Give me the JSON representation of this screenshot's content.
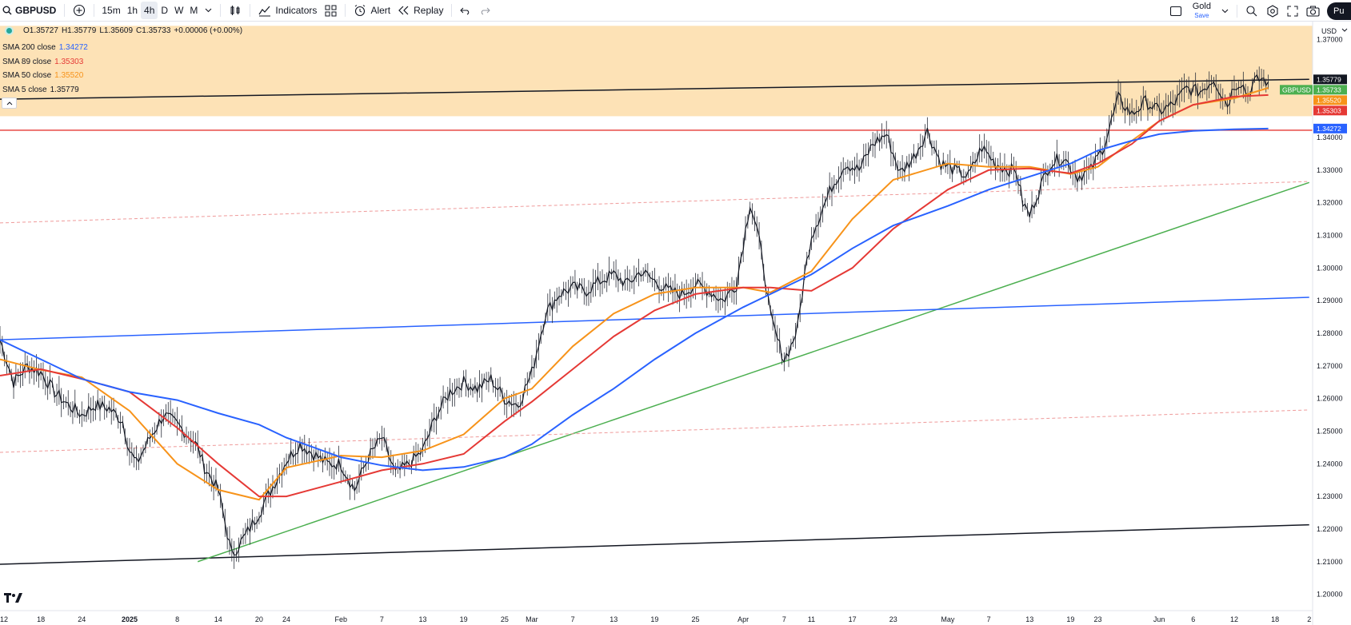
{
  "toolbar": {
    "symbol": "GBPUSD",
    "intervals": [
      "15m",
      "1h",
      "4h",
      "D",
      "W",
      "M"
    ],
    "active_interval": "4h",
    "indicators_label": "Indicators",
    "alert_label": "Alert",
    "replay_label": "Replay",
    "watch_name": "Gold",
    "watch_sub": "Save",
    "publish_label": "Pu"
  },
  "ohlc": {
    "open": "O1.35727",
    "high": "H1.35779",
    "low": "L1.35609",
    "close": "C1.35733",
    "change": "+0.00006 (+0.00%)"
  },
  "currency": "USD",
  "legend": [
    {
      "label": "SMA 200 close",
      "value": "1.34272",
      "color": "#2962ff"
    },
    {
      "label": "SMA 89 close",
      "value": "1.35303",
      "color": "#e53935"
    },
    {
      "label": "SMA 50 close",
      "value": "1.35520",
      "color": "#f7931a"
    },
    {
      "label": "SMA 5 close",
      "value": "1.35779",
      "color": "#131722"
    }
  ],
  "chart_data": {
    "type": "line",
    "symbol": "GBPUSD",
    "timeframe": "4h",
    "ylim": [
      1.195,
      1.3755
    ],
    "y_ticks": [
      1.2,
      1.21,
      1.22,
      1.23,
      1.24,
      1.25,
      1.26,
      1.27,
      1.28,
      1.29,
      1.3,
      1.31,
      1.32,
      1.33,
      1.34,
      1.37
    ],
    "y_tick_labels": [
      "1.20000",
      "1.21000",
      "1.22000",
      "1.23000",
      "1.24000",
      "1.25000",
      "1.26000",
      "1.27000",
      "1.28000",
      "1.29000",
      "1.30000",
      "1.31000",
      "1.32000",
      "1.33000",
      "1.34000",
      "1.37000"
    ],
    "x_ticks": [
      {
        "label": "12",
        "x": 0
      },
      {
        "label": "18",
        "x": 6
      },
      {
        "label": "24",
        "x": 12
      },
      {
        "label": "2025",
        "x": 19,
        "bold": true
      },
      {
        "label": "8",
        "x": 26
      },
      {
        "label": "14",
        "x": 32
      },
      {
        "label": "20",
        "x": 38
      },
      {
        "label": "24",
        "x": 42
      },
      {
        "label": "Feb",
        "x": 50
      },
      {
        "label": "7",
        "x": 56
      },
      {
        "label": "13",
        "x": 62
      },
      {
        "label": "19",
        "x": 68
      },
      {
        "label": "25",
        "x": 74
      },
      {
        "label": "Mar",
        "x": 78
      },
      {
        "label": "7",
        "x": 84
      },
      {
        "label": "13",
        "x": 90
      },
      {
        "label": "19",
        "x": 96
      },
      {
        "label": "25",
        "x": 102
      },
      {
        "label": "Apr",
        "x": 109
      },
      {
        "label": "7",
        "x": 115
      },
      {
        "label": "11",
        "x": 119
      },
      {
        "label": "17",
        "x": 125
      },
      {
        "label": "23",
        "x": 131
      },
      {
        "label": "May",
        "x": 139
      },
      {
        "label": "7",
        "x": 145
      },
      {
        "label": "13",
        "x": 151
      },
      {
        "label": "19",
        "x": 157
      },
      {
        "label": "23",
        "x": 161
      },
      {
        "label": "Jun",
        "x": 170
      },
      {
        "label": "6",
        "x": 175
      },
      {
        "label": "12",
        "x": 181
      },
      {
        "label": "18",
        "x": 187
      },
      {
        "label": "2",
        "x": 192
      }
    ],
    "xlim": [
      0,
      192.5
    ],
    "price_series": {
      "name": "GBPUSD",
      "x": [
        0,
        2,
        4,
        6,
        8,
        10,
        12,
        14,
        16,
        18,
        19,
        20,
        22,
        24,
        26,
        28,
        29,
        30,
        32,
        34,
        36,
        38,
        40,
        42,
        44,
        46,
        48,
        50,
        52,
        54,
        56,
        58,
        60,
        62,
        64,
        66,
        68,
        70,
        72,
        74,
        76,
        78,
        80,
        82,
        84,
        86,
        88,
        90,
        92,
        94,
        96,
        98,
        100,
        102,
        104,
        106,
        108,
        110,
        111,
        112,
        113,
        114,
        115,
        116,
        117,
        118,
        119,
        120,
        121,
        122,
        124,
        126,
        128,
        130,
        132,
        134,
        136,
        138,
        140,
        142,
        144,
        146,
        148,
        149,
        150,
        151,
        152,
        154,
        156,
        158,
        160,
        162,
        163,
        164,
        166,
        168,
        170,
        172,
        174,
        176,
        178,
        180,
        181,
        182,
        183,
        184,
        185,
        186
      ],
      "y": [
        1.278,
        1.265,
        1.27,
        1.268,
        1.262,
        1.258,
        1.255,
        1.258,
        1.257,
        1.253,
        1.244,
        1.24,
        1.248,
        1.255,
        1.252,
        1.248,
        1.245,
        1.239,
        1.232,
        1.212,
        1.218,
        1.225,
        1.233,
        1.241,
        1.246,
        1.243,
        1.24,
        1.24,
        1.232,
        1.242,
        1.248,
        1.237,
        1.24,
        1.244,
        1.255,
        1.262,
        1.265,
        1.263,
        1.266,
        1.26,
        1.258,
        1.268,
        1.286,
        1.292,
        1.294,
        1.293,
        1.296,
        1.298,
        1.295,
        1.299,
        1.296,
        1.293,
        1.292,
        1.295,
        1.293,
        1.29,
        1.295,
        1.32,
        1.312,
        1.3,
        1.285,
        1.278,
        1.272,
        1.276,
        1.282,
        1.298,
        1.31,
        1.315,
        1.32,
        1.325,
        1.332,
        1.33,
        1.338,
        1.341,
        1.329,
        1.334,
        1.342,
        1.332,
        1.33,
        1.328,
        1.337,
        1.332,
        1.33,
        1.33,
        1.32,
        1.316,
        1.322,
        1.332,
        1.334,
        1.328,
        1.33,
        1.338,
        1.345,
        1.352,
        1.347,
        1.351,
        1.348,
        1.35,
        1.355,
        1.354,
        1.358,
        1.35,
        1.356,
        1.357,
        1.353,
        1.357,
        1.358,
        1.357
      ]
    },
    "series": [
      {
        "name": "SMA 50 close",
        "color": "#f7931a",
        "x": [
          0,
          6,
          12,
          19,
          26,
          32,
          38,
          42,
          50,
          56,
          62,
          68,
          74,
          78,
          84,
          90,
          96,
          102,
          109,
          113,
          119,
          125,
          131,
          139,
          145,
          151,
          157,
          161,
          166,
          170,
          175,
          181,
          186
        ],
        "y": [
          1.272,
          1.2688,
          1.2665,
          1.2562,
          1.24,
          1.232,
          1.229,
          1.2388,
          1.2425,
          1.242,
          1.244,
          1.249,
          1.26,
          1.263,
          1.276,
          1.286,
          1.292,
          1.294,
          1.294,
          1.2925,
          1.299,
          1.315,
          1.327,
          1.332,
          1.331,
          1.331,
          1.3288,
          1.331,
          1.339,
          1.345,
          1.35,
          1.352,
          1.3552
        ]
      },
      {
        "name": "SMA 89 close",
        "color": "#e53935",
        "x": [
          0,
          6,
          12,
          19,
          26,
          32,
          38,
          42,
          50,
          56,
          62,
          68,
          74,
          78,
          84,
          90,
          96,
          102,
          109,
          113,
          119,
          125,
          131,
          139,
          145,
          151,
          157,
          161,
          166,
          170,
          175,
          181,
          186
        ],
        "y": [
          1.267,
          1.269,
          1.266,
          1.262,
          1.251,
          1.24,
          1.23,
          1.23,
          1.2345,
          1.238,
          1.24,
          1.243,
          1.253,
          1.259,
          1.269,
          1.279,
          1.287,
          1.292,
          1.294,
          1.294,
          1.293,
          1.3,
          1.312,
          1.324,
          1.33,
          1.3305,
          1.329,
          1.332,
          1.338,
          1.345,
          1.35,
          1.3525,
          1.353
        ]
      },
      {
        "name": "SMA 200 close",
        "color": "#2962ff",
        "x": [
          0,
          6,
          12,
          19,
          26,
          32,
          38,
          42,
          50,
          56,
          62,
          68,
          74,
          78,
          84,
          90,
          96,
          102,
          109,
          113,
          119,
          125,
          131,
          139,
          145,
          151,
          157,
          161,
          166,
          170,
          175,
          181,
          186
        ],
        "y": [
          1.278,
          1.272,
          1.266,
          1.262,
          1.2595,
          1.2555,
          1.252,
          1.248,
          1.242,
          1.2395,
          1.238,
          1.239,
          1.242,
          1.246,
          1.255,
          1.263,
          1.272,
          1.28,
          1.288,
          1.292,
          1.298,
          1.306,
          1.313,
          1.319,
          1.324,
          1.328,
          1.332,
          1.336,
          1.339,
          1.341,
          1.342,
          1.3425,
          1.3427
        ]
      }
    ],
    "drawings": [
      {
        "kind": "trendline",
        "color": "#131722",
        "x": [
          0,
          192
        ],
        "y": [
          1.3517,
          1.3578
        ]
      },
      {
        "kind": "trendline",
        "color": "#131722",
        "x": [
          0,
          192
        ],
        "y": [
          1.2092,
          1.2213
        ]
      },
      {
        "kind": "trendline",
        "color": "#4caf50",
        "x": [
          29,
          192
        ],
        "y": [
          1.21,
          1.3262
        ]
      },
      {
        "kind": "trendline",
        "color": "#2962ff",
        "x": [
          0,
          192
        ],
        "y": [
          1.278,
          1.291
        ]
      },
      {
        "kind": "horizontal",
        "color": "#e53935",
        "y": 1.3422
      },
      {
        "kind": "dashed",
        "color": "#ef9a9a",
        "x": [
          0,
          192
        ],
        "y": [
          1.3138,
          1.3265
        ]
      },
      {
        "kind": "dashed",
        "color": "#ef9a9a",
        "x": [
          0,
          192
        ],
        "y": [
          1.2435,
          1.2565
        ]
      },
      {
        "kind": "zone",
        "color": "#fde0b2",
        "y": [
          1.3465,
          1.3742
        ]
      }
    ],
    "price_tags": [
      {
        "text": "1.35779",
        "color": "#131722",
        "y": 1.35779
      },
      {
        "text": "1.35733",
        "color": "#4caf50",
        "y": 1.35733,
        "label": "GBPUSD"
      },
      {
        "text": "1.35520",
        "color": "#f7931a",
        "y": 1.3552
      },
      {
        "text": "1.35303",
        "color": "#e53935",
        "y": 1.35303
      },
      {
        "text": "1.34272",
        "color": "#2962ff",
        "y": 1.34272
      }
    ]
  }
}
